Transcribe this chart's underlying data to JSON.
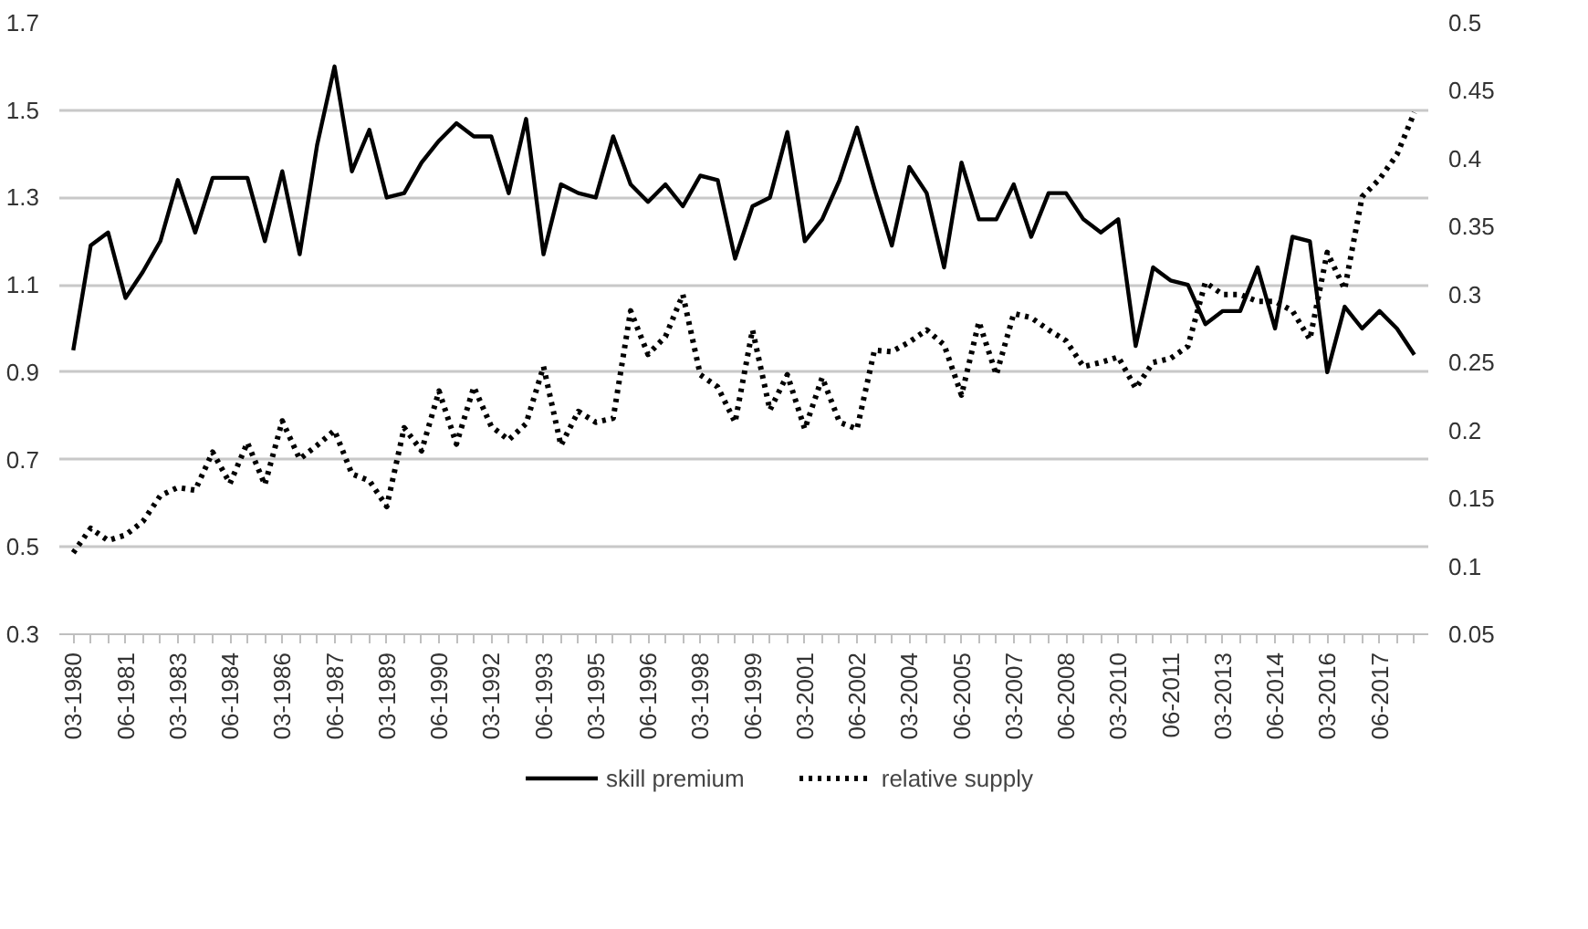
{
  "chart_data": {
    "type": "line",
    "categories": [
      "03-1980",
      null,
      null,
      "06-1981",
      null,
      null,
      "03-1983",
      null,
      null,
      "06-1984",
      null,
      null,
      "03-1986",
      null,
      null,
      "06-1987",
      null,
      null,
      "03-1989",
      null,
      null,
      "06-1990",
      null,
      null,
      "03-1992",
      null,
      null,
      "06-1993",
      null,
      null,
      "03-1995",
      null,
      null,
      "06-1996",
      null,
      null,
      "03-1998",
      null,
      null,
      "06-1999",
      null,
      null,
      "03-2001",
      null,
      null,
      "06-2002",
      null,
      null,
      "03-2004",
      null,
      null,
      "06-2005",
      null,
      null,
      "03-2007",
      null,
      null,
      "06-2008",
      null,
      null,
      "03-2010",
      null,
      null,
      "06-2011",
      null,
      null,
      "03-2013",
      null,
      null,
      "06-2014",
      null,
      null,
      "03-2016",
      null,
      null,
      "06-2017",
      null,
      null
    ],
    "series": [
      {
        "name": "skill premium",
        "color": "#000000",
        "line_style": "solid",
        "values": [
          0.95,
          1.19,
          1.22,
          1.07,
          1.13,
          1.2,
          1.34,
          1.22,
          1.345,
          1.345,
          1.345,
          1.2,
          1.36,
          1.17,
          1.42,
          1.6,
          1.36,
          1.455,
          1.3,
          1.31,
          1.38,
          1.43,
          1.47,
          1.44,
          1.44,
          1.31,
          1.48,
          1.17,
          1.33,
          1.31,
          1.3,
          1.44,
          1.33,
          1.29,
          1.33,
          1.28,
          1.35,
          1.34,
          1.16,
          1.28,
          1.3,
          1.45,
          1.2,
          1.25,
          1.34,
          1.46,
          1.32,
          1.19,
          1.37,
          1.31,
          1.14,
          1.38,
          1.25,
          1.25,
          1.33,
          1.21,
          1.31,
          1.31,
          1.25,
          1.22,
          1.25,
          0.96,
          1.14,
          1.11,
          1.1,
          1.01,
          1.04,
          1.04,
          1.14,
          1.0,
          1.21,
          1.2,
          0.9,
          1.05,
          1.0,
          1.04,
          1.0,
          0.94
        ]
      },
      {
        "name": "relative supply",
        "color": "#000000",
        "line_style": "dotted",
        "axis": "y2",
        "values": [
          0.11,
          0.128,
          0.119,
          0.123,
          0.133,
          0.152,
          0.158,
          0.156,
          0.184,
          0.161,
          0.191,
          0.16,
          0.207,
          0.179,
          0.189,
          0.2,
          0.168,
          0.163,
          0.144,
          0.202,
          0.185,
          0.229,
          0.19,
          0.232,
          0.203,
          0.193,
          0.205,
          0.247,
          0.189,
          0.214,
          0.206,
          0.209,
          0.288,
          0.256,
          0.269,
          0.3,
          0.241,
          0.232,
          0.206,
          0.274,
          0.215,
          0.241,
          0.201,
          0.239,
          0.206,
          0.201,
          0.259,
          0.258,
          0.265,
          0.274,
          0.263,
          0.226,
          0.28,
          0.241,
          0.286,
          0.283,
          0.274,
          0.266,
          0.247,
          0.25,
          0.254,
          0.231,
          0.25,
          0.253,
          0.262,
          0.309,
          0.3,
          0.3,
          0.295,
          0.295,
          0.288,
          0.267,
          0.331,
          0.304,
          0.372,
          0.385,
          0.403,
          0.434
        ]
      }
    ],
    "ylim": [
      0.3,
      1.7
    ],
    "yticks": [
      0.3,
      0.5,
      0.7,
      0.9,
      1.1,
      1.3,
      1.5,
      1.7
    ],
    "y2lim": [
      0.05,
      0.5
    ],
    "y2ticks": [
      0.05,
      0.1,
      0.15,
      0.2,
      0.25,
      0.3,
      0.35,
      0.4,
      0.45,
      0.5
    ],
    "grid": "y",
    "legend": "bottom"
  }
}
